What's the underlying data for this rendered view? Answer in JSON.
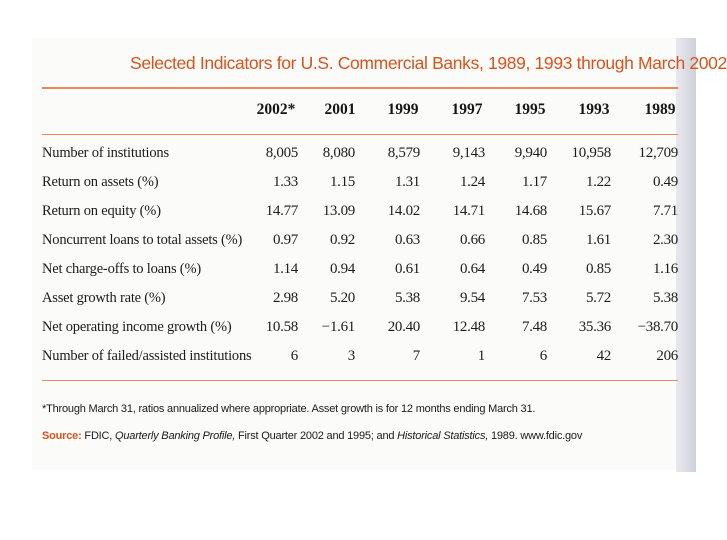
{
  "title": "Selected Indicators for U.S. Commercial Banks, 1989, 1993 through March 2002",
  "columns": [
    "2002*",
    "2001",
    "1999",
    "1997",
    "1995",
    "1993",
    "1989"
  ],
  "rows": [
    {
      "label": "Number of institutions",
      "values": [
        "8,005",
        "8,080",
        "8,579",
        "9,143",
        "9,940",
        "10,958",
        "12,709"
      ]
    },
    {
      "label": "Return on assets (%)",
      "values": [
        "1.33",
        "1.15",
        "1.31",
        "1.24",
        "1.17",
        "1.22",
        "0.49"
      ]
    },
    {
      "label": "Return on equity (%)",
      "values": [
        "14.77",
        "13.09",
        "14.02",
        "14.71",
        "14.68",
        "15.67",
        "7.71"
      ]
    },
    {
      "label": "Noncurrent loans to total assets (%)",
      "values": [
        "0.97",
        "0.92",
        "0.63",
        "0.66",
        "0.85",
        "1.61",
        "2.30"
      ]
    },
    {
      "label": "Net charge-offs to loans (%)",
      "values": [
        "1.14",
        "0.94",
        "0.61",
        "0.64",
        "0.49",
        "0.85",
        "1.16"
      ]
    },
    {
      "label": "Asset growth rate (%)",
      "values": [
        "2.98",
        "5.20",
        "5.38",
        "9.54",
        "7.53",
        "5.72",
        "5.38"
      ]
    },
    {
      "label": "Net operating income growth (%)",
      "values": [
        "10.58",
        "−1.61",
        "20.40",
        "12.48",
        "7.48",
        "35.36",
        "−38.70"
      ]
    },
    {
      "label": "Number of failed/assisted institutions",
      "values": [
        "6",
        "3",
        "7",
        "1",
        "6",
        "42",
        "206"
      ]
    }
  ],
  "footnote": "*Through March 31, ratios annualized where appropriate. Asset growth is for 12 months ending March 31.",
  "source": {
    "label": "Source:",
    "part1": "FDIC,",
    "publication1": "Quarterly Banking Profile,",
    "part2": "First Quarter 2002 and 1995; and",
    "publication2": "Historical Statistics,",
    "part3": "1989. www.fdic.gov"
  }
}
